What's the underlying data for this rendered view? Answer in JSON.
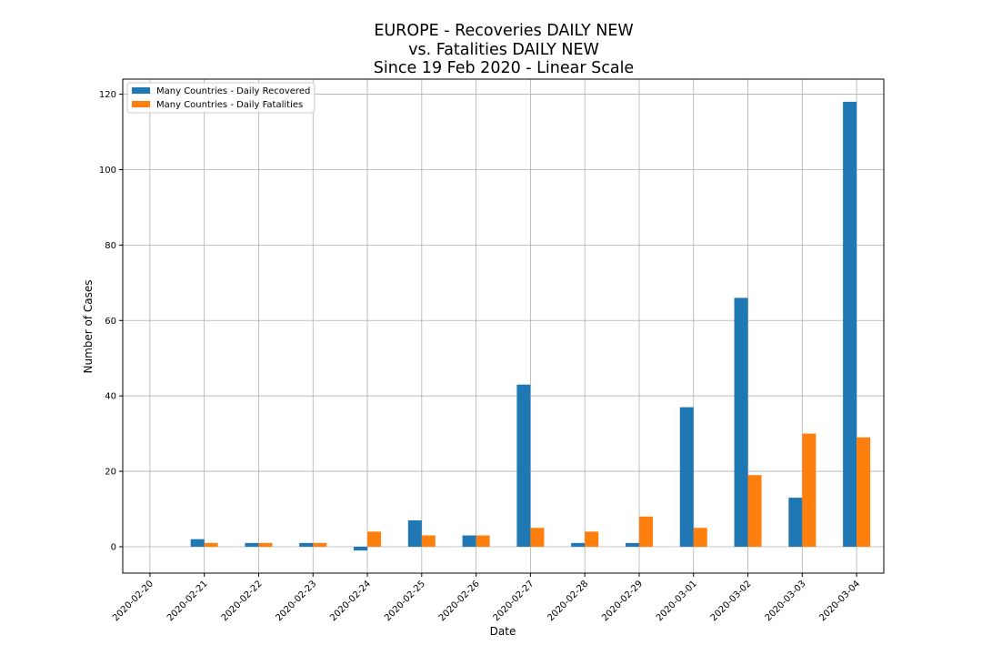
{
  "chart_data": {
    "type": "bar",
    "title_lines": [
      "EUROPE - Recoveries DAILY NEW",
      "vs. Fatalities DAILY NEW",
      "Since 19 Feb 2020 - Linear Scale"
    ],
    "xlabel": "Date",
    "ylabel": "Number of Cases",
    "categories": [
      "2020-02-20",
      "2020-02-21",
      "2020-02-22",
      "2020-02-23",
      "2020-02-24",
      "2020-02-25",
      "2020-02-26",
      "2020-02-27",
      "2020-02-28",
      "2020-02-29",
      "2020-03-01",
      "2020-03-02",
      "2020-03-03",
      "2020-03-04"
    ],
    "series": [
      {
        "name": "Many Countries - Daily Recovered",
        "color": "#1f77b4",
        "values": [
          0,
          2,
          1,
          1,
          -1,
          7,
          3,
          43,
          1,
          1,
          37,
          66,
          13,
          118
        ]
      },
      {
        "name": "Many Countries - Daily Fatalities",
        "color": "#ff7f0e",
        "values": [
          0,
          1,
          1,
          1,
          4,
          3,
          3,
          5,
          4,
          8,
          5,
          19,
          30,
          29
        ]
      }
    ],
    "ylim": [
      -7,
      124
    ],
    "yticks": [
      0,
      20,
      40,
      60,
      80,
      100,
      120
    ],
    "grid": true,
    "legend_position": "top-left"
  }
}
